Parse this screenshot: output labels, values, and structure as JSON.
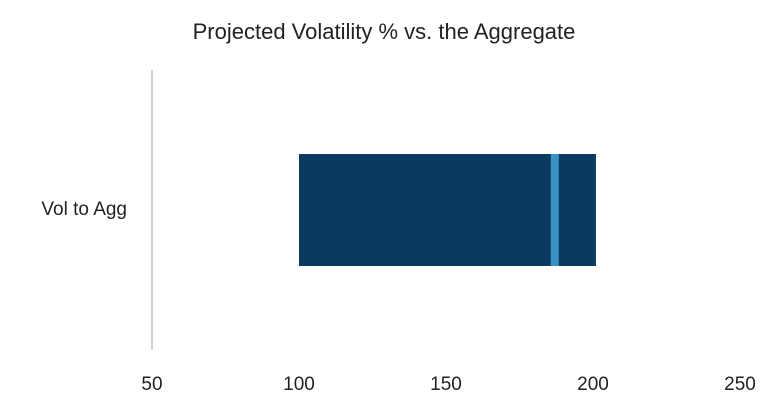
{
  "chart_data": {
    "type": "floating-bar",
    "title": "Projected Volatility % vs. the Aggregate",
    "categories": [
      "Vol to Agg"
    ],
    "low": [
      100
    ],
    "high": [
      201
    ],
    "marker": [
      187
    ],
    "color": "#0b3a5e",
    "marker_color": "#3a92c4",
    "xlim": [
      50,
      250
    ],
    "xticks": [
      50,
      100,
      150,
      200,
      250
    ],
    "grid": false
  }
}
